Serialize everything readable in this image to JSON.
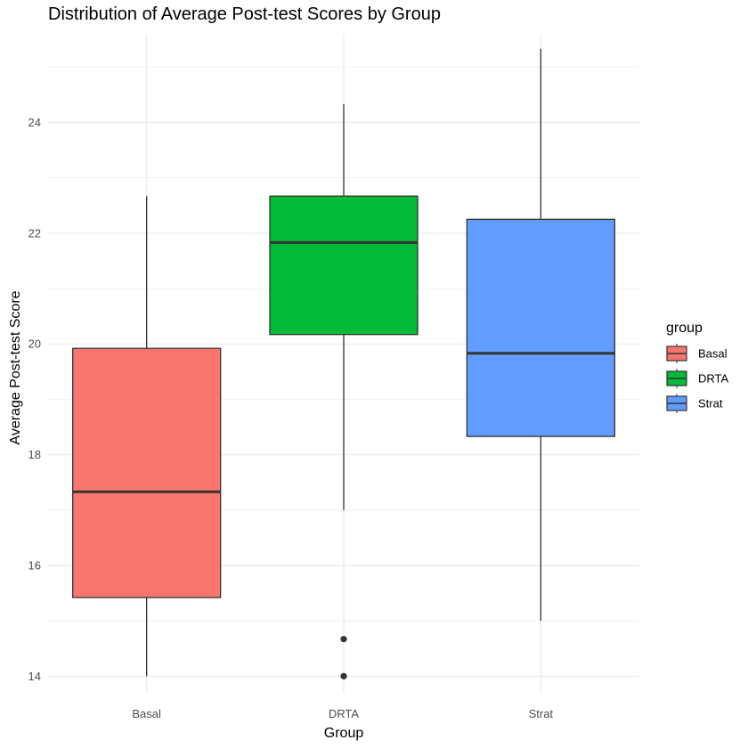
{
  "chart_data": {
    "type": "boxplot",
    "title": "Distribution of Average Post-test Scores by Group",
    "xlabel": "Group",
    "ylabel": "Average Post-test Score",
    "ylim": [
      13.7,
      25.6
    ],
    "yticks": [
      "14",
      "16",
      "18",
      "20",
      "22",
      "24"
    ],
    "categories": [
      "Basal",
      "DRTA",
      "Strat"
    ],
    "legend": {
      "title": "group",
      "position": "right"
    },
    "grid": true,
    "series": [
      {
        "name": "Basal",
        "color": "#F8766D",
        "whisker_low": 14.0,
        "q1": 15.42,
        "median": 17.33,
        "q3": 19.92,
        "whisker_high": 22.67,
        "outliers": []
      },
      {
        "name": "DRTA",
        "color": "#00BA38",
        "whisker_low": 17.0,
        "q1": 20.17,
        "median": 21.83,
        "q3": 22.67,
        "whisker_high": 24.33,
        "outliers": [
          14.67,
          14.0
        ]
      },
      {
        "name": "Strat",
        "color": "#619CFF",
        "whisker_low": 15.0,
        "q1": 18.33,
        "median": 19.83,
        "q3": 22.25,
        "whisker_high": 25.33,
        "outliers": []
      }
    ]
  }
}
